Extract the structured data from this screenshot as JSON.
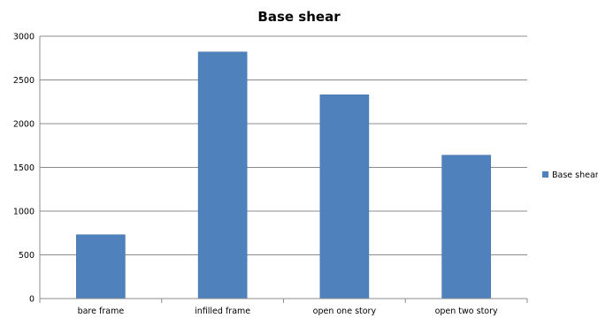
{
  "chart_data": {
    "type": "bar",
    "title": "Base shear",
    "categories": [
      "bare frame",
      "infilled frame",
      "open one story",
      "open two story"
    ],
    "series": [
      {
        "name": "Base shear",
        "values": [
          730,
          2820,
          2330,
          1640
        ]
      }
    ],
    "xlabel": "",
    "ylabel": "",
    "ylim": [
      0,
      3000
    ],
    "yticks": [
      0,
      500,
      1000,
      1500,
      2000,
      2500,
      3000
    ],
    "grid": true,
    "legend": "right",
    "colors": {
      "bar": "#4f81bd",
      "bar_edge": "#3f6fa6",
      "grid": "#8c8c8c",
      "axis": "#8c8c8c"
    }
  }
}
